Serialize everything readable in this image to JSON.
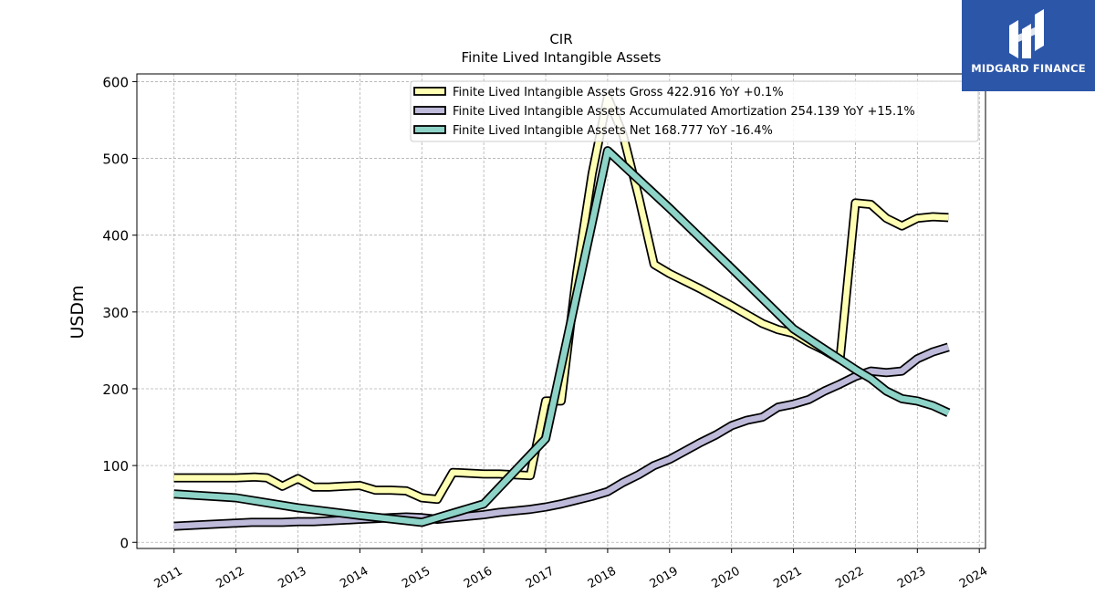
{
  "logo": {
    "text": "MIDGARD FINANCE"
  },
  "chart_data": {
    "type": "line",
    "title": "CIR",
    "subtitle": "Finite Lived Intangible Assets",
    "xlabel": "",
    "ylabel": "USDm",
    "xlim": [
      2010.4,
      2024.1
    ],
    "ylim": [
      -8,
      610
    ],
    "yticks": [
      0,
      100,
      200,
      300,
      400,
      500,
      600
    ],
    "xticks": [
      "2011",
      "2012",
      "2013",
      "2014",
      "2015",
      "2016",
      "2017",
      "2018",
      "2019",
      "2020",
      "2021",
      "2022",
      "2023",
      "2024"
    ],
    "grid": true,
    "legend_position": "top-right",
    "series": [
      {
        "name": "Finite Lived Intangible Assets Gross  422.916 YoY +0.1%",
        "color": "#ffffb3",
        "points": [
          [
            2011.0,
            84
          ],
          [
            2012.0,
            84
          ],
          [
            2012.3,
            85
          ],
          [
            2012.5,
            84
          ],
          [
            2012.75,
            73
          ],
          [
            2013.0,
            83
          ],
          [
            2013.25,
            72
          ],
          [
            2013.5,
            72
          ],
          [
            2013.75,
            73
          ],
          [
            2014.0,
            74
          ],
          [
            2014.25,
            68
          ],
          [
            2014.5,
            68
          ],
          [
            2014.75,
            67
          ],
          [
            2015.0,
            58
          ],
          [
            2015.25,
            56
          ],
          [
            2015.5,
            91
          ],
          [
            2015.75,
            90
          ],
          [
            2016.0,
            89
          ],
          [
            2016.25,
            89
          ],
          [
            2016.5,
            88
          ],
          [
            2016.75,
            87
          ],
          [
            2017.0,
            184
          ],
          [
            2017.25,
            184
          ],
          [
            2017.5,
            350
          ],
          [
            2017.75,
            480
          ],
          [
            2018.0,
            580
          ],
          [
            2018.25,
            530
          ],
          [
            2018.5,
            450
          ],
          [
            2018.75,
            362
          ],
          [
            2019.0,
            350
          ],
          [
            2019.5,
            330
          ],
          [
            2020.0,
            308
          ],
          [
            2020.5,
            285
          ],
          [
            2020.75,
            277
          ],
          [
            2021.0,
            272
          ],
          [
            2021.25,
            260
          ],
          [
            2021.5,
            250
          ],
          [
            2021.75,
            238
          ],
          [
            2022.0,
            442
          ],
          [
            2022.25,
            440
          ],
          [
            2022.5,
            422
          ],
          [
            2022.75,
            412
          ],
          [
            2023.0,
            422
          ],
          [
            2023.25,
            424
          ],
          [
            2023.5,
            422.916
          ]
        ]
      },
      {
        "name": "Finite Lived Intangible Assets Accumulated Amortization  254.139 YoY +15.1%",
        "color": "#bebada",
        "points": [
          [
            2011.0,
            21
          ],
          [
            2011.5,
            23
          ],
          [
            2012.0,
            25
          ],
          [
            2012.25,
            26
          ],
          [
            2012.5,
            26
          ],
          [
            2012.75,
            26
          ],
          [
            2013.0,
            27
          ],
          [
            2013.25,
            27
          ],
          [
            2013.5,
            28
          ],
          [
            2013.75,
            29
          ],
          [
            2014.0,
            30
          ],
          [
            2014.25,
            31
          ],
          [
            2014.5,
            32
          ],
          [
            2014.75,
            33
          ],
          [
            2015.0,
            32
          ],
          [
            2015.25,
            30
          ],
          [
            2015.5,
            32
          ],
          [
            2015.75,
            34
          ],
          [
            2016.0,
            36
          ],
          [
            2016.25,
            39
          ],
          [
            2016.5,
            41
          ],
          [
            2016.75,
            43
          ],
          [
            2017.0,
            46
          ],
          [
            2017.25,
            50
          ],
          [
            2017.5,
            55
          ],
          [
            2017.75,
            60
          ],
          [
            2018.0,
            66
          ],
          [
            2018.25,
            78
          ],
          [
            2018.5,
            88
          ],
          [
            2018.75,
            100
          ],
          [
            2019.0,
            108
          ],
          [
            2019.25,
            119
          ],
          [
            2019.5,
            130
          ],
          [
            2019.75,
            140
          ],
          [
            2020.0,
            152
          ],
          [
            2020.25,
            159
          ],
          [
            2020.5,
            163
          ],
          [
            2020.75,
            176
          ],
          [
            2021.0,
            180
          ],
          [
            2021.25,
            186
          ],
          [
            2021.5,
            197
          ],
          [
            2021.75,
            206
          ],
          [
            2022.0,
            216
          ],
          [
            2022.25,
            223
          ],
          [
            2022.5,
            221
          ],
          [
            2022.75,
            223
          ],
          [
            2023.0,
            239
          ],
          [
            2023.25,
            248
          ],
          [
            2023.5,
            254.139
          ]
        ]
      },
      {
        "name": "Finite Lived Intangible Assets Net  168.777 YoY -16.4%",
        "color": "#8dd3c7",
        "points": [
          [
            2011.0,
            63
          ],
          [
            2012.0,
            58
          ],
          [
            2013.0,
            45
          ],
          [
            2014.0,
            35
          ],
          [
            2015.0,
            26
          ],
          [
            2016.0,
            50
          ],
          [
            2017.0,
            135
          ],
          [
            2018.0,
            510
          ],
          [
            2019.0,
            435
          ],
          [
            2020.0,
            357
          ],
          [
            2021.0,
            278
          ],
          [
            2022.0,
            225
          ],
          [
            2022.25,
            213
          ],
          [
            2022.5,
            197
          ],
          [
            2022.75,
            187
          ],
          [
            2023.0,
            184
          ],
          [
            2023.25,
            178
          ],
          [
            2023.5,
            168.777
          ]
        ]
      }
    ]
  }
}
